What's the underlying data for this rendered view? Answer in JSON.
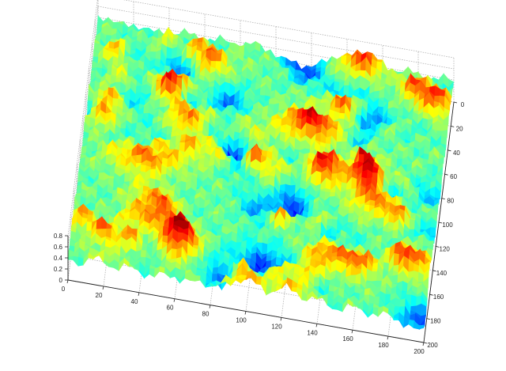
{
  "chart_data": {
    "type": "surface",
    "title": "",
    "xlabel": "",
    "ylabel": "",
    "zlabel": "",
    "xlim": [
      0,
      200
    ],
    "ylim": [
      0,
      200
    ],
    "zlim": [
      0,
      0.8
    ],
    "x_ticks": [
      "0",
      "20",
      "40",
      "60",
      "80",
      "100",
      "120",
      "140",
      "160",
      "180",
      "200"
    ],
    "y_ticks": [
      "0",
      "20",
      "40",
      "60",
      "80",
      "100",
      "120",
      "140",
      "160",
      "180",
      "200"
    ],
    "z_ticks": [
      "0",
      "0.2",
      "0.4",
      "0.6",
      "0.8"
    ],
    "grid": true,
    "colormap": "jet",
    "z_range_observed": [
      0.0,
      0.8
    ],
    "colors": {
      "axis": "#222222",
      "grid": "#b0b0b0",
      "background": "#ffffff"
    }
  }
}
